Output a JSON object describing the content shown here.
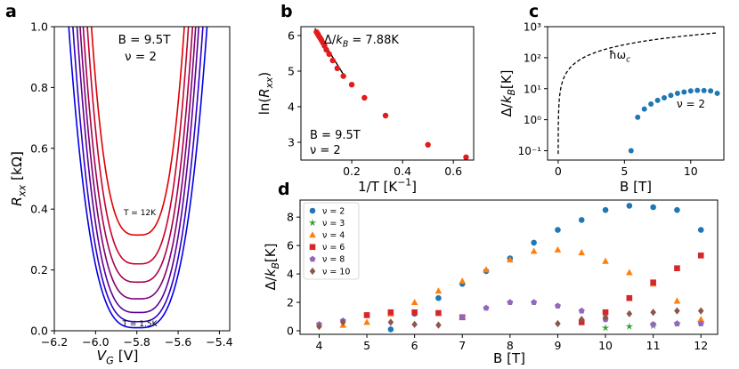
{
  "chart_data": [
    {
      "panel": "a",
      "type": "line",
      "xlabel": "V_G [V]",
      "ylabel": "R_xx [kΩ]",
      "xlim": [
        -6.2,
        -5.35
      ],
      "ylim": [
        0.0,
        1.0
      ],
      "xticks": [
        -6.2,
        -6.0,
        -5.8,
        -5.6,
        -5.4
      ],
      "xtick_labels": [
        "−6.2",
        "−6.0",
        "−5.8",
        "−5.6",
        "−5.4"
      ],
      "yticks": [
        0.0,
        0.2,
        0.4,
        0.6,
        0.8,
        1.0
      ],
      "ytick_labels": [
        "0.0",
        "0.2",
        "0.4",
        "0.6",
        "0.8",
        "1.0"
      ],
      "annotation_lines": [
        "B = 9.5T",
        "ν = 2"
      ],
      "label_top": "T = 12K",
      "label_bottom": "T = 1.5K",
      "series": [
        {
          "temperature_K": 12,
          "color": "#e00000",
          "minimum": 0.315,
          "center": -5.795,
          "halfwidth": 0.225
        },
        {
          "temperature_K": 10,
          "color": "#c8002c",
          "minimum": 0.22,
          "center": -5.795,
          "halfwidth": 0.245
        },
        {
          "temperature_K": 8,
          "color": "#a6004e",
          "minimum": 0.16,
          "center": -5.795,
          "halfwidth": 0.265
        },
        {
          "temperature_K": 6,
          "color": "#7e0074",
          "minimum": 0.105,
          "center": -5.795,
          "halfwidth": 0.28
        },
        {
          "temperature_K": 4,
          "color": "#5a0098",
          "minimum": 0.06,
          "center": -5.795,
          "halfwidth": 0.295
        },
        {
          "temperature_K": 2.5,
          "color": "#3000c8",
          "minimum": 0.03,
          "center": -5.795,
          "halfwidth": 0.315
        },
        {
          "temperature_K": 1.5,
          "color": "#0000e6",
          "minimum": 0.01,
          "center": -5.795,
          "halfwidth": 0.335
        }
      ]
    },
    {
      "panel": "b",
      "type": "scatter",
      "xlabel": "1/T [K^-1]",
      "ylabel": "ln(R_xx)",
      "xlim": [
        0.0,
        0.68
      ],
      "ylim": [
        2.5,
        6.25
      ],
      "xticks": [
        0.2,
        0.4,
        0.6
      ],
      "xtick_labels": [
        "0.2",
        "0.4",
        "0.6"
      ],
      "yticks": [
        3,
        4,
        5,
        6
      ],
      "ytick_labels": [
        "3",
        "4",
        "5",
        "6"
      ],
      "fit_label": "Δ/k_B = 7.88K",
      "annotation_lines": [
        "B = 9.5T",
        "ν = 2"
      ],
      "points": [
        [
          0.061,
          6.1
        ],
        [
          0.065,
          6.06
        ],
        [
          0.068,
          6.02
        ],
        [
          0.072,
          5.97
        ],
        [
          0.076,
          5.93
        ],
        [
          0.08,
          5.88
        ],
        [
          0.086,
          5.8
        ],
        [
          0.093,
          5.71
        ],
        [
          0.1,
          5.6
        ],
        [
          0.111,
          5.48
        ],
        [
          0.125,
          5.3
        ],
        [
          0.143,
          5.08
        ],
        [
          0.167,
          4.86
        ],
        [
          0.2,
          4.62
        ],
        [
          0.25,
          4.25
        ],
        [
          0.333,
          3.75
        ],
        [
          0.5,
          2.93
        ],
        [
          0.65,
          2.58
        ]
      ],
      "fit_x": [
        0.055,
        0.165
      ],
      "fit_y": [
        6.2,
        4.93
      ]
    },
    {
      "panel": "c",
      "type": "scatter",
      "xlabel": "B [T]",
      "ylabel": "Δ/k_B[K]",
      "yscale": "log",
      "xlim": [
        -0.8,
        12.5
      ],
      "ylim": [
        0.05,
        1000
      ],
      "xticks": [
        0,
        5,
        10
      ],
      "xtick_labels": [
        "0",
        "5",
        "10"
      ],
      "yticks": [
        0.1,
        1,
        10,
        100,
        1000
      ],
      "ytick_labels": [
        "10⁻¹",
        "10⁰",
        "10¹",
        "10²",
        "10³"
      ],
      "curve_label": "ħω_c",
      "series_label": "ν = 2",
      "hw_coefficient_K_per_T": 52.5,
      "points": [
        [
          5.5,
          0.1
        ],
        [
          6.0,
          1.2
        ],
        [
          6.5,
          2.2
        ],
        [
          7.0,
          3.2
        ],
        [
          7.5,
          4.2
        ],
        [
          8.0,
          5.1
        ],
        [
          8.5,
          6.1
        ],
        [
          9.0,
          7.1
        ],
        [
          9.5,
          7.8
        ],
        [
          10.0,
          8.5
        ],
        [
          10.5,
          8.8
        ],
        [
          11.0,
          8.7
        ],
        [
          11.5,
          8.5
        ],
        [
          12.0,
          7.1
        ]
      ]
    },
    {
      "panel": "d",
      "type": "scatter",
      "xlabel": "B [T]",
      "ylabel": "Δ/k_B[K]",
      "xlim": [
        3.6,
        12.35
      ],
      "ylim": [
        -0.25,
        9.2
      ],
      "xticks": [
        4,
        5,
        6,
        7,
        8,
        9,
        10,
        11,
        12
      ],
      "xtick_labels": [
        "4",
        "5",
        "6",
        "7",
        "8",
        "9",
        "10",
        "11",
        "12"
      ],
      "yticks": [
        0,
        2,
        4,
        6,
        8
      ],
      "ytick_labels": [
        "0",
        "2",
        "4",
        "6",
        "8"
      ],
      "series": [
        {
          "name": "ν = 2",
          "marker": "circle",
          "color": "#1f77b4",
          "points": [
            [
              5.5,
              0.1
            ],
            [
              6.0,
              1.2
            ],
            [
              6.5,
              2.3
            ],
            [
              7.0,
              3.3
            ],
            [
              7.5,
              4.2
            ],
            [
              8.0,
              5.1
            ],
            [
              8.5,
              6.2
            ],
            [
              9.0,
              7.1
            ],
            [
              9.5,
              7.8
            ],
            [
              10.0,
              8.5
            ],
            [
              10.5,
              8.8
            ],
            [
              11.0,
              8.7
            ],
            [
              11.5,
              8.5
            ],
            [
              12.0,
              7.1
            ]
          ]
        },
        {
          "name": "ν = 3",
          "marker": "star",
          "color": "#2ca02c",
          "points": [
            [
              10.0,
              0.2
            ],
            [
              10.5,
              0.3
            ],
            [
              11.0,
              0.35
            ],
            [
              11.5,
              0.5
            ],
            [
              12.0,
              0.6
            ]
          ]
        },
        {
          "name": "ν = 4",
          "marker": "triangle",
          "color": "#ff7f0e",
          "points": [
            [
              4.5,
              0.4
            ],
            [
              5.0,
              0.6
            ],
            [
              5.5,
              1.2
            ],
            [
              6.0,
              2.0
            ],
            [
              6.5,
              2.8
            ],
            [
              7.0,
              3.5
            ],
            [
              7.5,
              4.3
            ],
            [
              8.0,
              5.0
            ],
            [
              8.5,
              5.6
            ],
            [
              9.0,
              5.7
            ],
            [
              9.5,
              5.5
            ],
            [
              10.0,
              4.9
            ],
            [
              10.5,
              4.1
            ],
            [
              11.0,
              3.3
            ],
            [
              11.5,
              2.1
            ],
            [
              12.0,
              0.8
            ]
          ]
        },
        {
          "name": "ν = 6",
          "marker": "square",
          "color": "#d62728",
          "points": [
            [
              5.0,
              1.1
            ],
            [
              5.5,
              1.3
            ],
            [
              6.0,
              1.3
            ],
            [
              6.5,
              1.25
            ],
            [
              7.0,
              0.95
            ],
            [
              9.5,
              0.6
            ],
            [
              10.0,
              1.3
            ],
            [
              10.5,
              2.3
            ],
            [
              11.0,
              3.4
            ],
            [
              11.5,
              4.4
            ],
            [
              12.0,
              5.3
            ]
          ]
        },
        {
          "name": "ν = 8",
          "marker": "pentagon",
          "color": "#9467bd",
          "points": [
            [
              4.0,
              0.45
            ],
            [
              4.5,
              0.7
            ],
            [
              7.0,
              0.95
            ],
            [
              7.5,
              1.6
            ],
            [
              8.0,
              2.0
            ],
            [
              8.5,
              2.0
            ],
            [
              9.0,
              1.75
            ],
            [
              9.5,
              1.4
            ],
            [
              10.0,
              0.8
            ],
            [
              11.0,
              0.45
            ],
            [
              11.5,
              0.5
            ],
            [
              12.0,
              0.5
            ]
          ]
        },
        {
          "name": "ν = 10",
          "marker": "diamond",
          "color": "#8c564b",
          "points": [
            [
              4.0,
              0.3
            ],
            [
              4.5,
              0.6
            ],
            [
              5.5,
              0.6
            ],
            [
              6.0,
              0.45
            ],
            [
              6.5,
              0.4
            ],
            [
              9.0,
              0.5
            ],
            [
              9.5,
              0.8
            ],
            [
              10.0,
              0.95
            ],
            [
              10.5,
              1.2
            ],
            [
              11.0,
              1.3
            ],
            [
              11.5,
              1.4
            ],
            [
              12.0,
              1.4
            ]
          ]
        }
      ]
    }
  ]
}
